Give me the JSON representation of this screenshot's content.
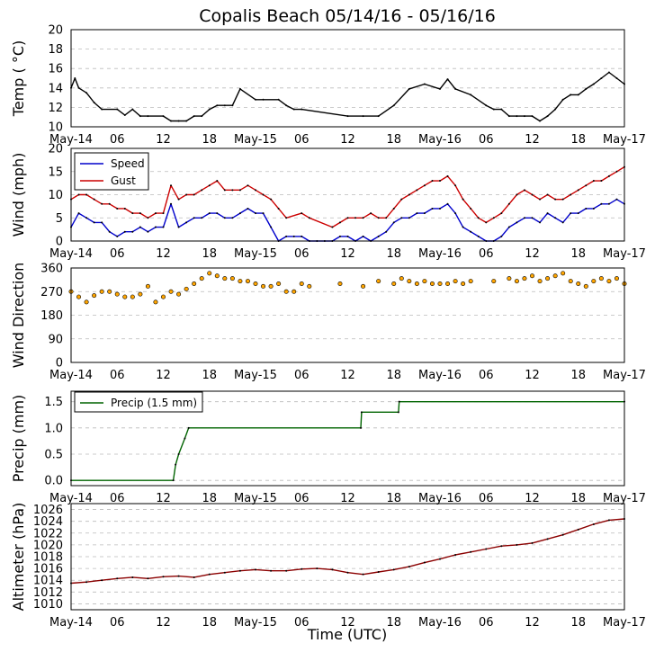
{
  "title": "Copalis Beach 05/14/16 - 05/16/16",
  "xlabel": "Time (UTC)",
  "x_tick_labels": [
    "May-14",
    "06",
    "12",
    "18",
    "May-15",
    "06",
    "12",
    "18",
    "May-16",
    "06",
    "12",
    "18",
    "May-17"
  ],
  "colors": {
    "temp": "#000000",
    "speed": "#0000cc",
    "gust": "#cc0000",
    "direction": "#ffa500",
    "precip": "#006400",
    "altimeter": "#8b0000",
    "grid": "#bbbbbb"
  },
  "chart_data": [
    {
      "type": "line",
      "name": "temperature",
      "ylabel": "Temp ( °C)",
      "ylim": [
        10,
        20
      ],
      "yticks": [
        "10",
        "12",
        "14",
        "16",
        "18",
        "20"
      ],
      "x_hours": [
        0,
        0.5,
        1,
        2,
        3,
        4,
        6,
        7,
        8,
        9,
        10,
        12,
        13,
        14,
        15,
        16,
        17,
        18,
        19,
        20,
        21,
        22,
        24,
        25,
        27,
        28,
        29,
        30,
        36,
        38,
        40,
        42,
        44,
        46,
        48,
        49,
        50,
        52,
        54,
        55,
        56,
        57,
        58,
        59,
        60,
        61,
        62,
        63,
        64,
        65,
        66,
        67,
        68,
        69,
        70,
        71,
        72
      ],
      "series": [
        {
          "name": "Temp",
          "values": [
            14.0,
            15.0,
            14.0,
            13.5,
            12.5,
            11.8,
            11.8,
            11.2,
            11.8,
            11.1,
            11.1,
            11.1,
            10.6,
            10.6,
            10.6,
            11.1,
            11.1,
            11.8,
            12.2,
            12.2,
            12.2,
            13.9,
            12.8,
            12.8,
            12.8,
            12.2,
            11.8,
            11.8,
            11.1,
            11.1,
            11.1,
            12.2,
            13.9,
            14.4,
            13.9,
            14.9,
            13.9,
            13.3,
            12.2,
            11.8,
            11.8,
            11.1,
            11.1,
            11.1,
            11.1,
            10.6,
            11.1,
            11.8,
            12.8,
            13.3,
            13.3,
            13.9,
            14.4,
            15.0,
            15.6,
            15.0,
            14.4
          ]
        }
      ]
    },
    {
      "type": "line",
      "name": "wind",
      "ylabel": "Wind (mph)",
      "ylim": [
        0,
        20
      ],
      "yticks": [
        "0",
        "5",
        "10",
        "15",
        "20"
      ],
      "x_hours": [
        0,
        1,
        2,
        3,
        4,
        5,
        6,
        7,
        8,
        9,
        10,
        11,
        12,
        13,
        14,
        15,
        16,
        17,
        18,
        19,
        20,
        21,
        22,
        23,
        24,
        25,
        26,
        27,
        28,
        29,
        30,
        31,
        32,
        33,
        34,
        35,
        36,
        37,
        38,
        39,
        40,
        41,
        42,
        43,
        44,
        45,
        46,
        47,
        48,
        49,
        50,
        51,
        52,
        53,
        54,
        55,
        56,
        57,
        58,
        59,
        60,
        61,
        62,
        63,
        64,
        65,
        66,
        67,
        68,
        69,
        70,
        71,
        72
      ],
      "series": [
        {
          "name": "Speed",
          "values": [
            3,
            6,
            5,
            4,
            4,
            2,
            1,
            2,
            2,
            3,
            2,
            3,
            3,
            8,
            3,
            4,
            5,
            5,
            6,
            6,
            5,
            5,
            6,
            7,
            6,
            6,
            3,
            0,
            1,
            1,
            1,
            0,
            0,
            0,
            0,
            1,
            1,
            0,
            1,
            0,
            1,
            2,
            4,
            5,
            5,
            6,
            6,
            7,
            7,
            8,
            6,
            3,
            2,
            1,
            0,
            0,
            1,
            3,
            4,
            5,
            5,
            4,
            6,
            5,
            4,
            6,
            6,
            7,
            7,
            8,
            8,
            9,
            8
          ]
        },
        {
          "name": "Gust",
          "values": [
            9,
            10,
            10,
            9,
            8,
            8,
            7,
            7,
            6,
            6,
            5,
            6,
            6,
            12,
            9,
            10,
            10,
            11,
            12,
            13,
            11,
            11,
            11,
            12,
            11,
            10,
            9,
            7,
            5,
            null,
            6,
            5,
            null,
            null,
            3,
            4,
            5,
            5,
            5,
            6,
            5,
            5,
            7,
            9,
            10,
            11,
            12,
            13,
            13,
            14,
            12,
            9,
            7,
            5,
            4,
            5,
            6,
            8,
            10,
            11,
            10,
            9,
            10,
            9,
            9,
            10,
            11,
            12,
            13,
            13,
            14,
            15,
            16
          ]
        }
      ]
    },
    {
      "type": "scatter",
      "name": "wind_direction",
      "ylabel": "Wind Direction",
      "ylim": [
        0,
        360
      ],
      "yticks": [
        "0",
        "90",
        "180",
        "270",
        "360"
      ],
      "x_hours": [
        0,
        1,
        2,
        3,
        4,
        5,
        6,
        7,
        8,
        9,
        10,
        11,
        12,
        13,
        14,
        15,
        16,
        17,
        18,
        19,
        20,
        21,
        22,
        23,
        24,
        25,
        26,
        27,
        28,
        29,
        30,
        31,
        32,
        33,
        34,
        35,
        36,
        37,
        38,
        39,
        40,
        41,
        42,
        43,
        44,
        45,
        46,
        47,
        48,
        49,
        50,
        51,
        52,
        53,
        54,
        55,
        56,
        57,
        58,
        59,
        60,
        61,
        62,
        63,
        64,
        65,
        66,
        67,
        68,
        69,
        70,
        71,
        72
      ],
      "series": [
        {
          "name": "Direction",
          "values": [
            270,
            250,
            230,
            255,
            270,
            270,
            260,
            250,
            250,
            260,
            290,
            230,
            250,
            270,
            260,
            280,
            300,
            320,
            340,
            330,
            320,
            320,
            310,
            310,
            300,
            290,
            290,
            300,
            270,
            270,
            300,
            290,
            null,
            null,
            null,
            300,
            null,
            null,
            290,
            null,
            310,
            null,
            300,
            320,
            310,
            300,
            310,
            300,
            300,
            300,
            310,
            300,
            310,
            null,
            null,
            310,
            null,
            320,
            310,
            320,
            330,
            310,
            320,
            330,
            340,
            310,
            300,
            290,
            310,
            320,
            310,
            320,
            300
          ]
        }
      ]
    },
    {
      "type": "line",
      "name": "precip",
      "ylabel": "Precip (mm)",
      "ylim": [
        -0.1,
        1.7
      ],
      "yticks": [
        "0.0",
        "0.5",
        "1.0",
        "1.5"
      ],
      "x_hours": [
        0,
        13.3,
        13.6,
        14,
        14.8,
        15.3,
        37.7,
        37.8,
        42.6,
        42.7,
        72
      ],
      "series": [
        {
          "name": "Precip (1.5 mm)",
          "values": [
            0,
            0,
            0.3,
            0.5,
            0.8,
            1.0,
            1.0,
            1.3,
            1.3,
            1.5,
            1.5
          ]
        }
      ]
    },
    {
      "type": "line",
      "name": "altimeter",
      "ylabel": "Altimeter (hPa)",
      "ylim": [
        1009,
        1027
      ],
      "yticks": [
        "1010",
        "1012",
        "1014",
        "1016",
        "1018",
        "1020",
        "1022",
        "1024",
        "1026"
      ],
      "x_hours": [
        0,
        2,
        4,
        6,
        8,
        10,
        12,
        14,
        16,
        18,
        20,
        22,
        24,
        26,
        28,
        30,
        32,
        34,
        36,
        38,
        40,
        42,
        44,
        46,
        48,
        50,
        52,
        54,
        56,
        58,
        60,
        62,
        64,
        66,
        68,
        70,
        72
      ],
      "series": [
        {
          "name": "Altimeter",
          "values": [
            1013.5,
            1013.7,
            1014.0,
            1014.3,
            1014.5,
            1014.3,
            1014.6,
            1014.7,
            1014.5,
            1015.0,
            1015.3,
            1015.6,
            1015.8,
            1015.6,
            1015.6,
            1015.9,
            1016.0,
            1015.8,
            1015.3,
            1015.0,
            1015.4,
            1015.8,
            1016.3,
            1017.0,
            1017.6,
            1018.3,
            1018.8,
            1019.3,
            1019.8,
            1020.0,
            1020.3,
            1021.0,
            1021.7,
            1022.6,
            1023.5,
            1024.2,
            1024.4
          ]
        }
      ]
    }
  ]
}
